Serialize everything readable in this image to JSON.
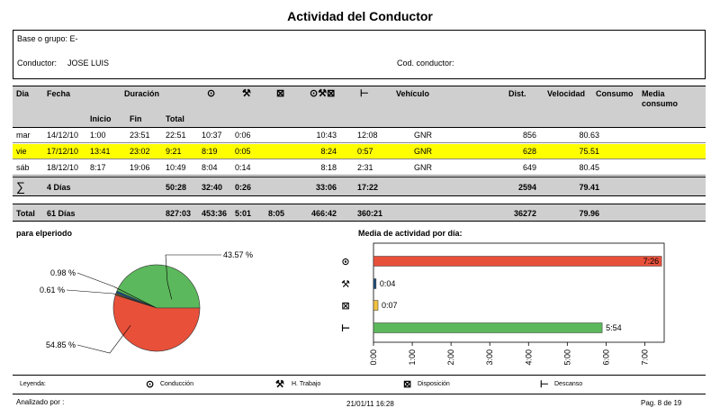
{
  "title": "Actividad del Conductor",
  "info": {
    "base_label": "Base o grupo: E-",
    "driver_label": "Conductor:",
    "driver_name": "JOSE LUIS",
    "code_label": "Cod. conductor:"
  },
  "header": {
    "dia": "Dia",
    "fecha": "Fecha",
    "duracion": "Duración",
    "inicio": "Inicio",
    "fin": "Fin",
    "total": "Total",
    "vehiculo": "Vehículo",
    "dist": "Dist.",
    "velocidad": "Velocidad",
    "consumo": "Consumo",
    "media": "Media",
    "media2": "consumo",
    "icons": {
      "conduccion": "⊙",
      "trabajo": "⚒",
      "disposicion": "⊠",
      "combo": "⊙⚒⊠",
      "descanso": "⊢"
    }
  },
  "rows": [
    {
      "dia": "mar",
      "fecha": "14/12/10",
      "inicio": "1:00",
      "fin": "23:51",
      "total": "22:51",
      "cond": "10:37",
      "trab": "0:06",
      "disp": "",
      "combo": "10:43",
      "desc": "12:08",
      "veh": "GNR",
      "dist": "856",
      "vel": "80.63",
      "highlight": false
    },
    {
      "dia": "vie",
      "fecha": "17/12/10",
      "inicio": "13:41",
      "fin": "23:02",
      "total": "9:21",
      "cond": "8:19",
      "trab": "0:05",
      "disp": "",
      "combo": "8:24",
      "desc": "0:57",
      "veh": "GNR",
      "dist": "628",
      "vel": "75.51",
      "highlight": true
    },
    {
      "dia": "sáb",
      "fecha": "18/12/10",
      "inicio": "8:17",
      "fin": "19:06",
      "total": "10:49",
      "cond": "8:04",
      "trab": "0:14",
      "disp": "",
      "combo": "8:18",
      "desc": "2:31",
      "veh": "GNR",
      "dist": "649",
      "vel": "80.45",
      "highlight": false
    }
  ],
  "summary": {
    "sigma": "∑",
    "dias": "4 Días",
    "total": "50:28",
    "cond": "32:40",
    "trab": "0:26",
    "combo": "33:06",
    "desc": "17:22",
    "dist": "2594",
    "vel": "79.41"
  },
  "grand_total": {
    "label": "Total",
    "dias": "61 Días",
    "total": "827:03",
    "cond": "453:36",
    "trab": "5:01",
    "disp": "8:05",
    "combo": "466:42",
    "desc": "360:21",
    "dist": "36272",
    "vel": "79.96"
  },
  "pie_title": "para elperiodo",
  "bar_title": "Media de actividad por día:",
  "chart_data": [
    {
      "type": "pie",
      "slices": [
        {
          "label": "43.57 %",
          "value": 43.57,
          "color": "#5cb85c"
        },
        {
          "label": "0.98 %",
          "value": 0.98,
          "color": "#1f4e79"
        },
        {
          "label": "0.61 %",
          "value": 0.61,
          "color": "#f0c040"
        },
        {
          "label": "54.85 %",
          "value": 54.85,
          "color": "#e8503a"
        }
      ]
    },
    {
      "type": "bar",
      "orientation": "horizontal",
      "categories": [
        "conduccion",
        "trabajo",
        "disposicion",
        "descanso"
      ],
      "values_minutes": [
        446,
        4,
        7,
        354
      ],
      "labels": [
        "7:26",
        "0:04",
        "0:07",
        "5:54"
      ],
      "colors": [
        "#e8503a",
        "#1f4e79",
        "#f0c040",
        "#5cb85c"
      ],
      "xlim_minutes": [
        0,
        450
      ],
      "ticks": [
        "0:00",
        "1:00",
        "2:00",
        "3:00",
        "4:00",
        "5:00",
        "6:00",
        "7:00"
      ]
    }
  ],
  "legend": {
    "label": "Leyenda:",
    "conduccion": "Conducción",
    "trabajo": "H. Trabajo",
    "disposicion": "Disposición",
    "descanso": "Descanso"
  },
  "footer": {
    "analizado": "Analizado por :",
    "fecha": "21/01/11 16:28",
    "pagina": "Pag. 8 de 19"
  }
}
